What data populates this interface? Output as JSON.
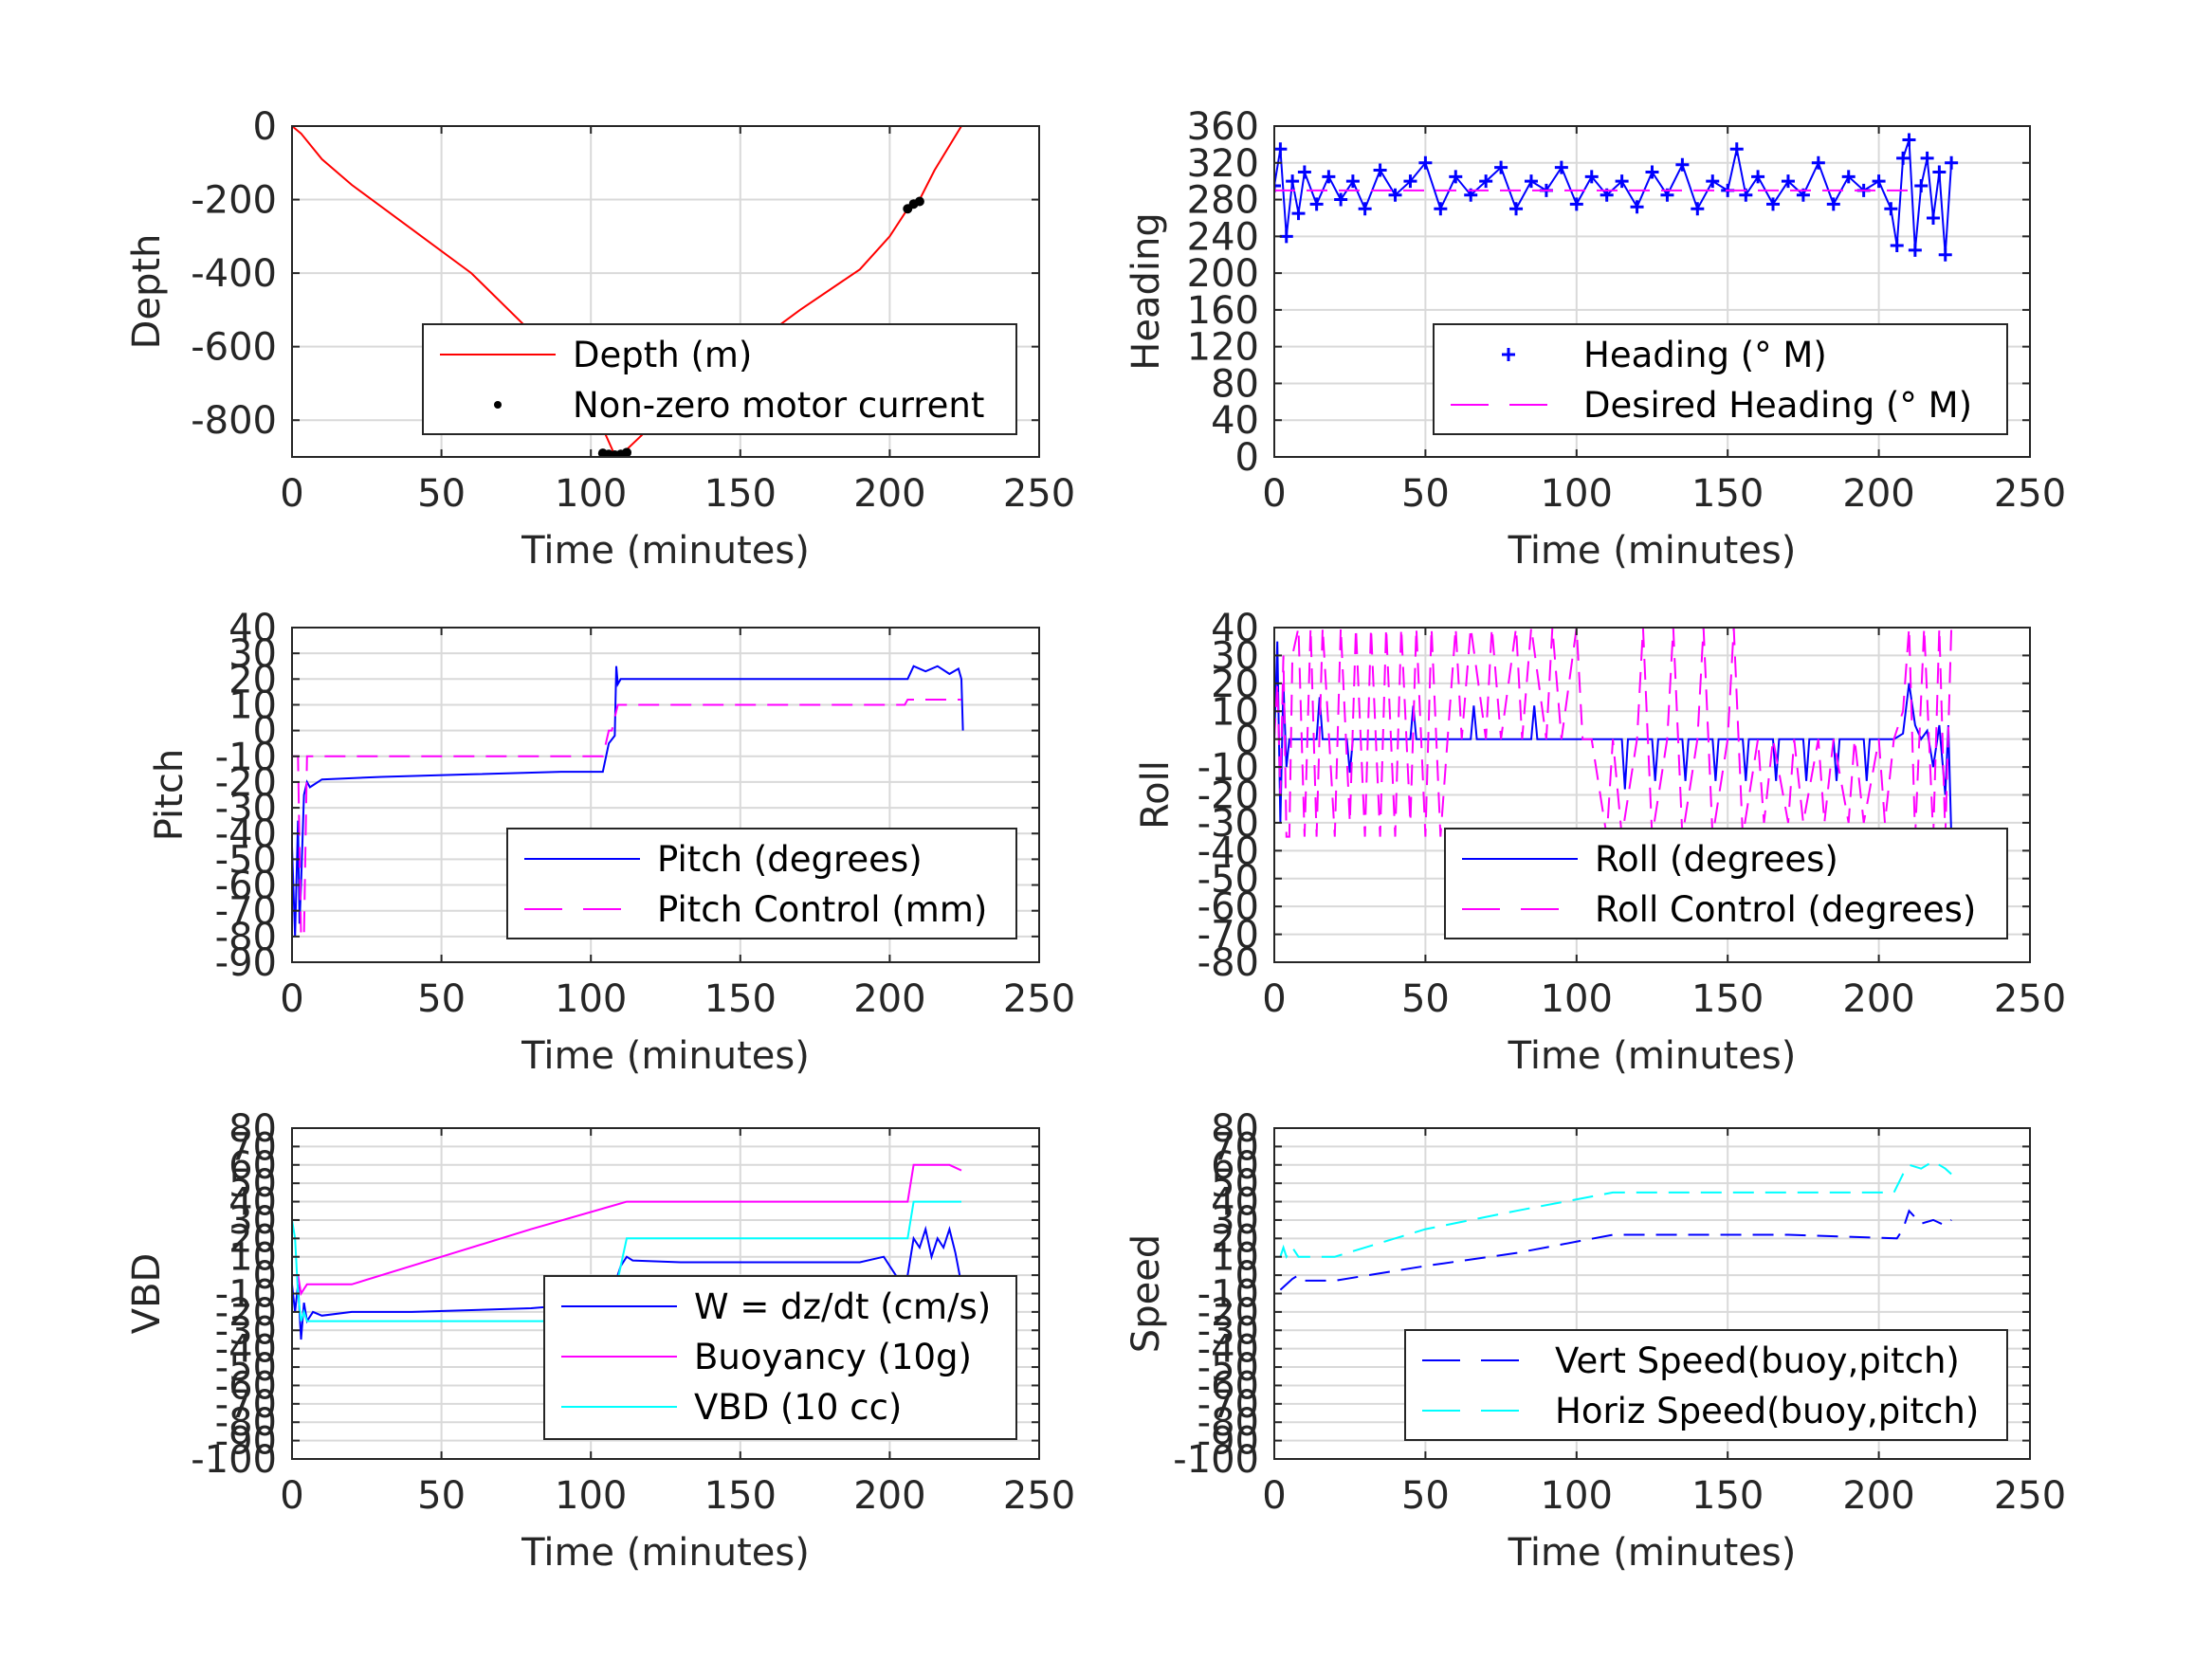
{
  "chart_data": [
    {
      "type": "line",
      "id": "depth",
      "xlabel": "Time (minutes)",
      "ylabel": "Depth",
      "xlim": [
        0,
        250
      ],
      "ylim": [
        -900,
        0
      ],
      "xticks": [
        0,
        50,
        100,
        150,
        200,
        250
      ],
      "yticks": [
        0,
        -200,
        -400,
        -600,
        -800
      ],
      "grid": true,
      "legend_position": "bottom-right",
      "series": [
        {
          "name": "Depth (m)",
          "style": "solid",
          "color": "#ff0000",
          "x": [
            0,
            3,
            10,
            20,
            40,
            60,
            80,
            100,
            108,
            112,
            130,
            150,
            170,
            190,
            200,
            206,
            210,
            215,
            224
          ],
          "y": [
            0,
            -20,
            -90,
            -160,
            -280,
            -400,
            -560,
            -750,
            -895,
            -880,
            -740,
            -620,
            -500,
            -390,
            -300,
            -225,
            -200,
            -120,
            0
          ]
        },
        {
          "name": "Non-zero motor current",
          "style": "dots",
          "color": "#000000",
          "x": [
            104,
            106,
            108,
            110,
            112,
            206,
            208,
            210
          ],
          "y": [
            -890,
            -893,
            -895,
            -893,
            -888,
            -225,
            -212,
            -205
          ]
        }
      ]
    },
    {
      "type": "scatter",
      "id": "heading",
      "xlabel": "Time (minutes)",
      "ylabel": "Heading",
      "xlim": [
        0,
        250
      ],
      "ylim": [
        0,
        360
      ],
      "xticks": [
        0,
        50,
        100,
        150,
        200,
        250
      ],
      "yticks": [
        0,
        40,
        80,
        120,
        160,
        200,
        240,
        280,
        320,
        360
      ],
      "grid": true,
      "legend_position": "bottom-right",
      "series": [
        {
          "name": "Heading (° M)",
          "style": "plus",
          "color": "#0000ff",
          "x": [
            0,
            2,
            4,
            6,
            8,
            10,
            14,
            18,
            22,
            26,
            30,
            35,
            40,
            45,
            50,
            55,
            60,
            65,
            70,
            75,
            80,
            85,
            90,
            95,
            100,
            105,
            110,
            115,
            120,
            125,
            130,
            135,
            140,
            145,
            150,
            153,
            156,
            160,
            165,
            170,
            175,
            180,
            185,
            190,
            195,
            200,
            204,
            206,
            208,
            210,
            212,
            214,
            216,
            218,
            220,
            222,
            224
          ],
          "y": [
            295,
            335,
            240,
            300,
            265,
            310,
            275,
            305,
            280,
            300,
            270,
            312,
            285,
            300,
            320,
            270,
            305,
            285,
            300,
            315,
            270,
            300,
            290,
            315,
            275,
            305,
            285,
            300,
            272,
            310,
            285,
            318,
            270,
            300,
            290,
            335,
            285,
            305,
            275,
            300,
            285,
            320,
            275,
            305,
            290,
            300,
            270,
            230,
            325,
            345,
            225,
            295,
            325,
            260,
            310,
            220,
            320
          ]
        },
        {
          "name": "Desired Heading (° M)",
          "style": "dashed",
          "color": "#ff00ff",
          "x": [
            0,
            210
          ],
          "y": [
            290,
            290
          ]
        }
      ]
    },
    {
      "type": "line",
      "id": "pitch",
      "xlabel": "Time (minutes)",
      "ylabel": "Pitch",
      "xlim": [
        0,
        250
      ],
      "ylim": [
        -90,
        40
      ],
      "xticks": [
        0,
        50,
        100,
        150,
        200,
        250
      ],
      "yticks": [
        40,
        30,
        20,
        10,
        0,
        -10,
        -20,
        -30,
        -40,
        -50,
        -60,
        -70,
        -80,
        -90
      ],
      "grid": true,
      "legend_position": "bottom-right",
      "series": [
        {
          "name": "Pitch (degrees)",
          "style": "solid",
          "color": "#0000ff",
          "x": [
            0,
            1,
            2,
            2.5,
            3,
            4,
            5,
            6,
            10,
            30,
            60,
            90,
            104,
            106,
            108,
            108.5,
            109,
            110,
            130,
            160,
            190,
            205,
            206,
            208,
            212,
            216,
            220,
            223,
            224,
            224.5
          ],
          "y": [
            -45,
            -80,
            -35,
            -75,
            -60,
            -25,
            -20,
            -22,
            -19,
            -18,
            -17,
            -16,
            -16,
            -5,
            -2,
            25,
            18,
            20,
            20,
            20,
            20,
            20,
            20,
            25,
            23,
            25,
            22,
            24,
            20,
            0
          ]
        },
        {
          "name": "Pitch Control (mm)",
          "style": "dashed",
          "color": "#ff00ff",
          "x": [
            0,
            2,
            3,
            4,
            5,
            103,
            104,
            105,
            106,
            107,
            108,
            109,
            110,
            205,
            206,
            224
          ],
          "y": [
            -10,
            -10,
            -80,
            -80,
            -10,
            -10,
            -10,
            -5,
            0,
            0,
            5,
            10,
            10,
            10,
            12,
            12
          ]
        }
      ]
    },
    {
      "type": "line",
      "id": "roll",
      "xlabel": "Time (minutes)",
      "ylabel": "Roll",
      "xlim": [
        0,
        250
      ],
      "ylim": [
        -80,
        40
      ],
      "xticks": [
        0,
        50,
        100,
        150,
        200,
        250
      ],
      "yticks": [
        40,
        30,
        20,
        10,
        0,
        -10,
        -20,
        -30,
        -40,
        -50,
        -60,
        -70,
        -80
      ],
      "grid": true,
      "legend_position": "bottom-right",
      "series": [
        {
          "name": "Roll (degrees)",
          "style": "solid",
          "color": "#0000ff",
          "x": [
            0,
            1,
            2,
            3,
            4,
            5,
            6,
            8,
            10,
            14,
            15,
            16,
            20,
            24,
            25,
            26,
            30,
            40,
            45,
            46,
            47,
            55,
            65,
            66,
            67,
            75,
            85,
            86,
            87,
            95,
            100,
            110,
            115,
            116,
            117,
            125,
            126,
            127,
            135,
            136,
            137,
            145,
            146,
            147,
            155,
            156,
            157,
            165,
            166,
            167,
            175,
            176,
            177,
            185,
            186,
            187,
            195,
            196,
            197,
            205,
            208,
            210,
            212,
            214,
            216,
            218,
            220,
            222,
            223,
            224
          ],
          "y": [
            0,
            35,
            -30,
            20,
            -10,
            0,
            0,
            0,
            0,
            0,
            15,
            0,
            0,
            0,
            -12,
            0,
            0,
            0,
            0,
            12,
            0,
            0,
            0,
            12,
            0,
            0,
            0,
            12,
            0,
            0,
            0,
            0,
            0,
            -18,
            0,
            0,
            -15,
            0,
            0,
            -15,
            0,
            0,
            -15,
            0,
            0,
            -15,
            0,
            0,
            -15,
            0,
            0,
            -15,
            0,
            0,
            -15,
            0,
            0,
            -15,
            0,
            0,
            2,
            20,
            5,
            0,
            3,
            -10,
            5,
            -20,
            5,
            -35
          ]
        },
        {
          "name": "Roll Control (degrees)",
          "style": "dashed",
          "color": "#ff00ff",
          "x": [
            0,
            1,
            2,
            3,
            4,
            5,
            6,
            8,
            10,
            12,
            14,
            16,
            20,
            22,
            25,
            27,
            30,
            32,
            35,
            37,
            40,
            42,
            45,
            47,
            50,
            52,
            55,
            60,
            62,
            65,
            70,
            72,
            75,
            80,
            82,
            85,
            90,
            92,
            95,
            100,
            102,
            105,
            110,
            112,
            115,
            120,
            122,
            125,
            130,
            132,
            135,
            140,
            142,
            145,
            150,
            152,
            155,
            160,
            162,
            165,
            170,
            172,
            175,
            180,
            182,
            185,
            190,
            192,
            195,
            200,
            202,
            205,
            208,
            210,
            212,
            215,
            218,
            220,
            222,
            224
          ],
          "y": [
            0,
            20,
            -20,
            30,
            -35,
            -35,
            30,
            40,
            -35,
            40,
            -35,
            40,
            -35,
            40,
            -30,
            40,
            -35,
            40,
            -35,
            40,
            -35,
            40,
            -30,
            40,
            -35,
            40,
            -35,
            40,
            0,
            40,
            0,
            40,
            0,
            40,
            0,
            40,
            0,
            40,
            0,
            40,
            0,
            0,
            -35,
            0,
            -35,
            0,
            40,
            -35,
            0,
            40,
            -35,
            0,
            40,
            -35,
            0,
            40,
            -35,
            0,
            -30,
            0,
            -30,
            0,
            -30,
            0,
            -30,
            0,
            -30,
            0,
            -30,
            0,
            -30,
            0,
            10,
            40,
            -35,
            40,
            -35,
            40,
            -35,
            40
          ]
        }
      ]
    },
    {
      "type": "line",
      "id": "vbd",
      "xlabel": "Time (minutes)",
      "ylabel": "VBD",
      "xlim": [
        0,
        250
      ],
      "ylim": [
        -100,
        80
      ],
      "xticks": [
        0,
        50,
        100,
        150,
        200,
        250
      ],
      "yticks": [
        80,
        70,
        60,
        50,
        40,
        30,
        20,
        10,
        0,
        -10,
        -20,
        -30,
        -40,
        -50,
        -60,
        -70,
        -80,
        -90,
        -100
      ],
      "ytick_labels": [
        "80",
        "70",
        "60",
        "50",
        "40",
        "30",
        "20",
        "10",
        "0",
        "-10",
        "-20",
        "-30",
        "-40",
        "-50",
        "-60",
        "-70",
        "-80",
        "-90",
        "-100"
      ],
      "grid": true,
      "legend_position": "bottom-right",
      "series": [
        {
          "name": "W = dz/dt (cm/s)",
          "style": "solid",
          "color": "#0000ff",
          "x": [
            0,
            1,
            2,
            3,
            4,
            5,
            7,
            10,
            20,
            40,
            60,
            80,
            95,
            104,
            106,
            108,
            110,
            112,
            114,
            130,
            160,
            190,
            198,
            200,
            202,
            204,
            206,
            208,
            210,
            212,
            214,
            216,
            218,
            220,
            222,
            224
          ],
          "y": [
            -5,
            -20,
            -5,
            -35,
            -15,
            -25,
            -20,
            -22,
            -20,
            -20,
            -19,
            -18,
            -16,
            -16,
            -20,
            -5,
            5,
            10,
            8,
            7,
            7,
            7,
            10,
            5,
            0,
            -5,
            0,
            20,
            15,
            25,
            10,
            20,
            15,
            25,
            12,
            -5
          ]
        },
        {
          "name": "Buoyancy (10g)",
          "style": "solid",
          "color": "#ff00ff",
          "x": [
            0,
            2,
            3,
            5,
            20,
            50,
            80,
            112,
            160,
            200,
            206,
            208,
            210,
            220,
            224
          ],
          "y": [
            0,
            0,
            -10,
            -5,
            -5,
            10,
            25,
            40,
            40,
            40,
            40,
            60,
            60,
            60,
            57
          ]
        },
        {
          "name": "VBD (10 cc)",
          "style": "solid",
          "color": "#00ffff",
          "x": [
            0,
            1,
            2,
            3,
            4,
            5,
            104,
            106,
            112,
            150,
            206,
            208,
            224
          ],
          "y": [
            30,
            20,
            -10,
            -25,
            -20,
            -25,
            -25,
            -25,
            20,
            20,
            20,
            40,
            40
          ]
        }
      ]
    },
    {
      "type": "line",
      "id": "speed",
      "xlabel": "Time (minutes)",
      "ylabel": "Speed",
      "xlim": [
        0,
        250
      ],
      "ylim": [
        -100,
        80
      ],
      "xticks": [
        0,
        50,
        100,
        150,
        200,
        250
      ],
      "yticks": [
        80,
        70,
        60,
        50,
        40,
        30,
        20,
        10,
        0,
        -10,
        -20,
        -30,
        -40,
        -50,
        -60,
        -70,
        -80,
        -90,
        -100
      ],
      "ytick_labels": [
        "80",
        "70",
        "60",
        "50",
        "40",
        "30",
        "20",
        "10",
        "0",
        "-10",
        "-20",
        "-30",
        "-40",
        "-50",
        "-60",
        "-70",
        "-80",
        "-90",
        "-100"
      ],
      "grid": true,
      "legend_position": "bottom-right",
      "series": [
        {
          "name": "Vert Speed(buoy,pitch)",
          "style": "dashed",
          "color": "#0000ff",
          "x": [
            2,
            4,
            6,
            8,
            10,
            20,
            50,
            80,
            112,
            140,
            170,
            206,
            208,
            210,
            214,
            218,
            222,
            224
          ],
          "y": [
            -8,
            -5,
            -2,
            0,
            -3,
            -3,
            5,
            12,
            22,
            22,
            22,
            20,
            25,
            35,
            28,
            30,
            27,
            30
          ]
        },
        {
          "name": "Horiz Speed(buoy,pitch)",
          "style": "dashed",
          "color": "#00ffff",
          "x": [
            2,
            3,
            4,
            6,
            8,
            10,
            20,
            50,
            80,
            112,
            150,
            205,
            208,
            210,
            214,
            218,
            222,
            224
          ],
          "y": [
            10,
            15,
            10,
            15,
            10,
            10,
            10,
            25,
            35,
            45,
            45,
            45,
            55,
            60,
            58,
            62,
            58,
            55
          ]
        }
      ]
    }
  ]
}
